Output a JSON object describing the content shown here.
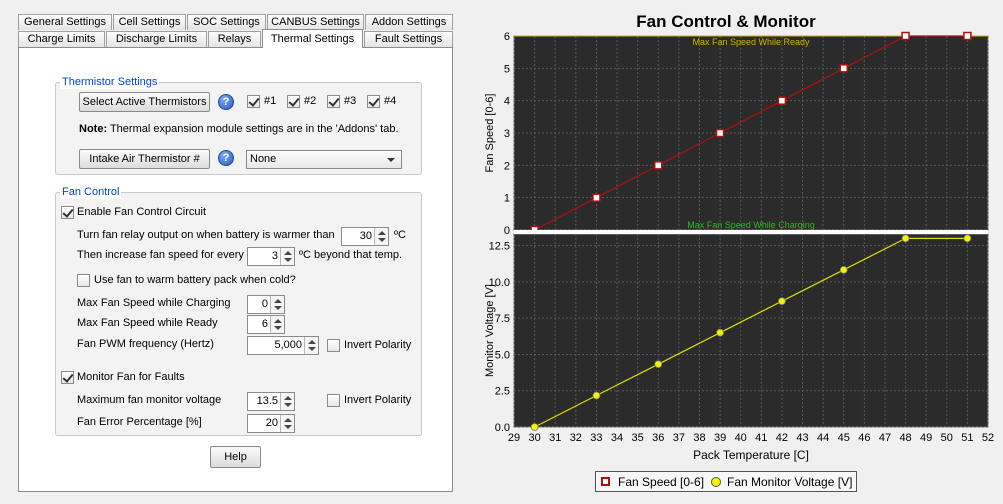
{
  "tabs": {
    "row1": [
      "General Settings",
      "Cell Settings",
      "SOC Settings",
      "CANBUS Settings",
      "Addon Settings"
    ],
    "row2": [
      "Charge Limits",
      "Discharge Limits",
      "Relays",
      "Thermal Settings",
      "Fault Settings"
    ],
    "active": "Thermal Settings"
  },
  "thermistor": {
    "title": "Thermistor Settings",
    "select_btn": "Select Active Thermistors",
    "help": "?",
    "checks": [
      {
        "label": "#1",
        "checked": true
      },
      {
        "label": "#2",
        "checked": true
      },
      {
        "label": "#3",
        "checked": true
      },
      {
        "label": "#4",
        "checked": true
      }
    ],
    "note_bold": "Note:",
    "note_text": " Thermal expansion module settings are in the 'Addons' tab.",
    "intake_btn": "Intake Air Thermistor #",
    "intake_value": "None"
  },
  "fan": {
    "title": "Fan Control",
    "enable_label": "Enable Fan Control Circuit",
    "enable_checked": true,
    "turn_on_label": "Turn fan relay output on when battery is warmer than",
    "turn_on_value": "30",
    "turn_on_unit": "ºC",
    "increase_label": "Then increase fan speed for every",
    "increase_value": "3",
    "increase_unit": "ºC beyond that temp.",
    "warm_label": "Use fan to warm battery pack when cold?",
    "warm_checked": false,
    "max_charging_label": "Max Fan Speed while Charging",
    "max_charging_value": "0",
    "max_ready_label": "Max Fan Speed while Ready",
    "max_ready_value": "6",
    "pwm_label": "Fan PWM frequency (Hertz)",
    "pwm_value": "5,000",
    "invert_label": "Invert Polarity",
    "invert_checked": false,
    "monitor_label": "Monitor Fan for Faults",
    "monitor_checked": true,
    "max_voltage_label": "Maximum fan monitor voltage",
    "max_voltage_value": "13.5",
    "invert2_label": "Invert Polarity",
    "invert2_checked": false,
    "error_label": "Fan Error Percentage [%]",
    "error_value": "20"
  },
  "help_button": "Help",
  "chart_data": {
    "title": "Fan Control & Monitor",
    "xlabel": "Pack Temperature [C]",
    "xlim": [
      29,
      52
    ],
    "xticks": [
      29,
      30,
      31,
      32,
      33,
      34,
      35,
      36,
      37,
      38,
      39,
      40,
      41,
      42,
      43,
      44,
      45,
      46,
      47,
      48,
      49,
      50,
      51,
      52
    ],
    "top": {
      "type": "line",
      "ylabel": "Fan Speed [0-6]",
      "ylim": [
        0,
        6
      ],
      "yticks": [
        0,
        1,
        2,
        3,
        4,
        5,
        6
      ],
      "series": [
        {
          "name": "Fan Speed [0-6]",
          "color": "#b01010",
          "x": [
            30,
            33,
            36,
            39,
            42,
            45,
            48,
            51
          ],
          "y": [
            0,
            1,
            2,
            3,
            4,
            5,
            6,
            6
          ]
        }
      ],
      "hline": {
        "value": 6,
        "label": "Max Fan Speed While Ready",
        "color": "#d4b000"
      }
    },
    "bottom": {
      "type": "line",
      "ylabel": "Monitor Voltage [V]",
      "ylim": [
        0,
        13.3
      ],
      "yticks": [
        0.0,
        2.5,
        5.0,
        7.5,
        10.0,
        12.5
      ],
      "series": [
        {
          "name": "Fan Monitor Voltage [V]",
          "color": "#dede00",
          "x": [
            30,
            33,
            36,
            39,
            42,
            45,
            48,
            51
          ],
          "y": [
            0,
            2.17,
            4.33,
            6.5,
            8.67,
            10.83,
            13,
            13
          ]
        }
      ],
      "hline": {
        "value": 13.5,
        "label": "Max Fan Speed While Charging",
        "color": "#20c020"
      }
    },
    "legend": [
      "Fan Speed [0-6]",
      "Fan Monitor Voltage [V]"
    ],
    "colors": {
      "background": "#2b2b2b",
      "grid": "#5a5a5a"
    }
  }
}
